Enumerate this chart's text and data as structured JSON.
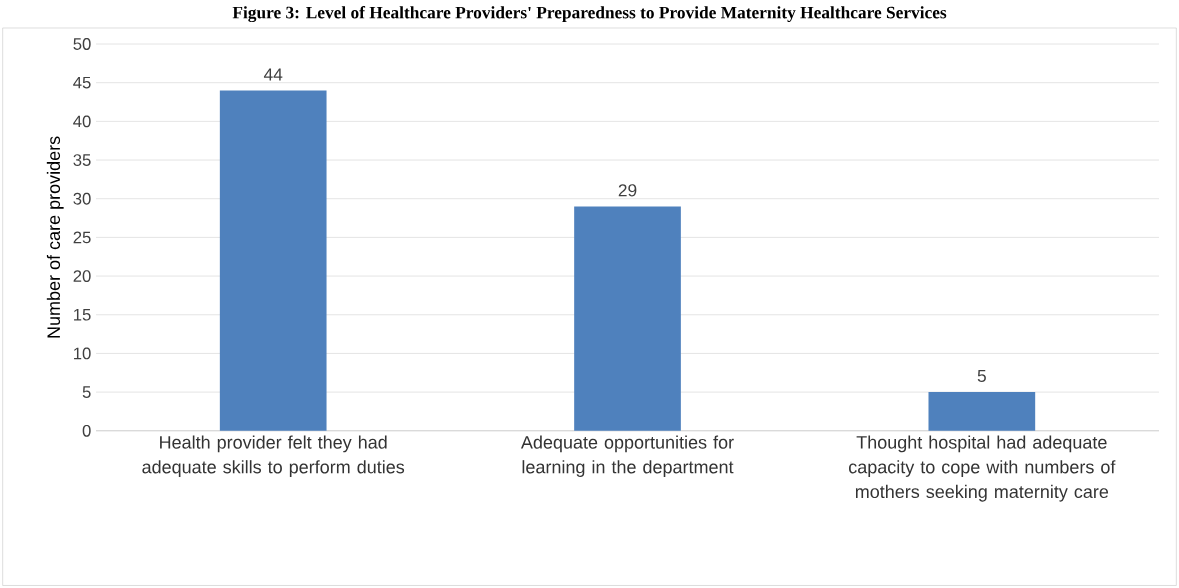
{
  "chart_data": {
    "type": "bar",
    "title": "Figure 3: Level of Healthcare Providers' Preparedness to Provide Maternity Healthcare Services",
    "ylabel": "Number of care providers",
    "categories": [
      "Health provider felt they had adequate skills to perform duties",
      "Adequate opportunities for learning in the department",
      "Thought hospital had adequate capacity to cope with numbers of mothers seeking maternity care"
    ],
    "values": [
      44,
      29,
      5
    ],
    "color": "#4f81bd",
    "ylim": [
      0,
      50
    ],
    "yticks": [
      0,
      5,
      10,
      15,
      20,
      25,
      30,
      35,
      40,
      45,
      50
    ],
    "grid": "y",
    "data_labels": true
  }
}
